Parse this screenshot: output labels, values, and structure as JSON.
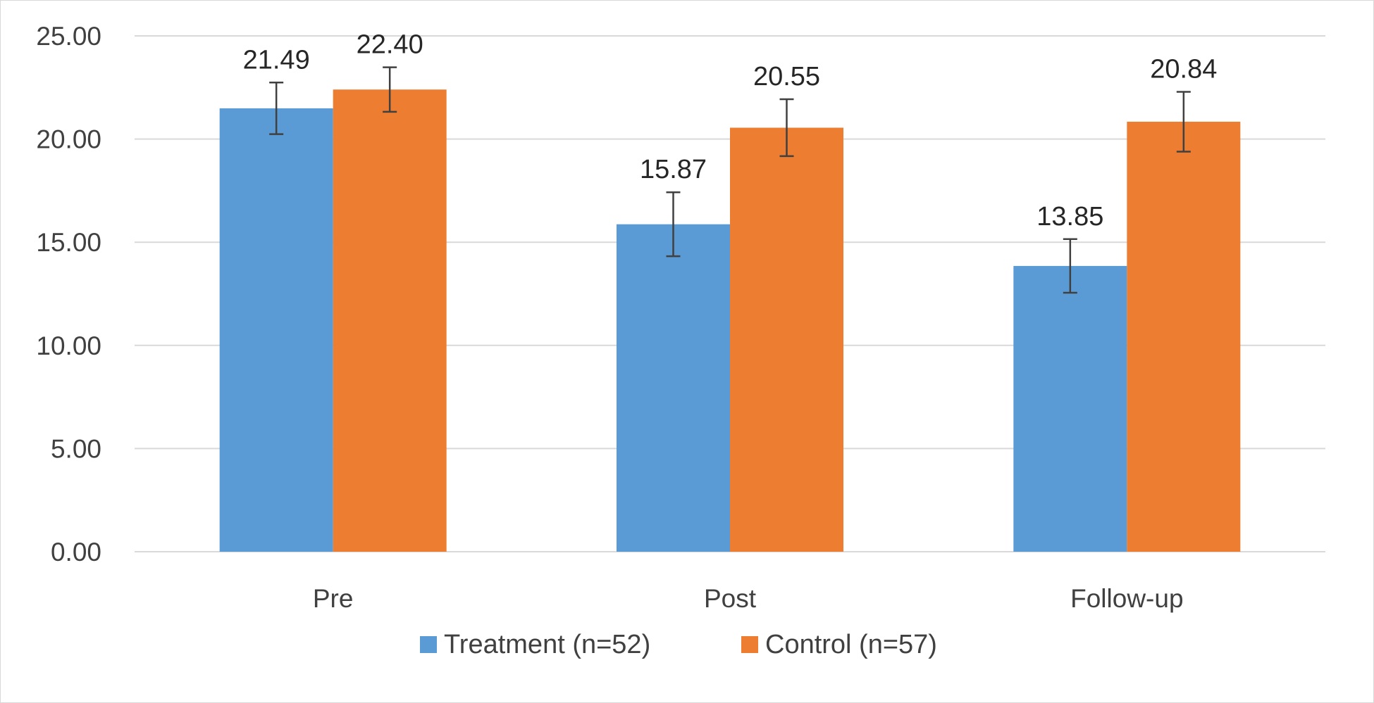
{
  "chart_data": {
    "type": "bar",
    "title": "",
    "xlabel": "",
    "ylabel": "",
    "categories": [
      "Pre",
      "Post",
      "Follow-up"
    ],
    "series": [
      {
        "name": "Treatment (n=52)",
        "color": "#5b9bd5",
        "values": [
          21.49,
          15.87,
          13.85
        ],
        "value_labels": [
          "21.49",
          "15.87",
          "13.85"
        ],
        "error": [
          1.25,
          1.55,
          1.3
        ]
      },
      {
        "name": "Control (n=57)",
        "color": "#ed7d31",
        "values": [
          22.4,
          20.55,
          20.84
        ],
        "value_labels": [
          "22.40",
          "20.55",
          "20.84"
        ],
        "error": [
          1.08,
          1.38,
          1.45
        ]
      }
    ],
    "ylim": [
      0,
      25
    ],
    "yticks": [
      0,
      5,
      10,
      15,
      20,
      25
    ],
    "ytick_labels": [
      "0.00",
      "5.00",
      "10.00",
      "15.00",
      "20.00",
      "25.00"
    ],
    "grid": true,
    "legend": "bottom",
    "colors": {
      "grid": "#d9d9d9",
      "error_bar": "#404040",
      "frame": "#d9d9d9"
    }
  }
}
